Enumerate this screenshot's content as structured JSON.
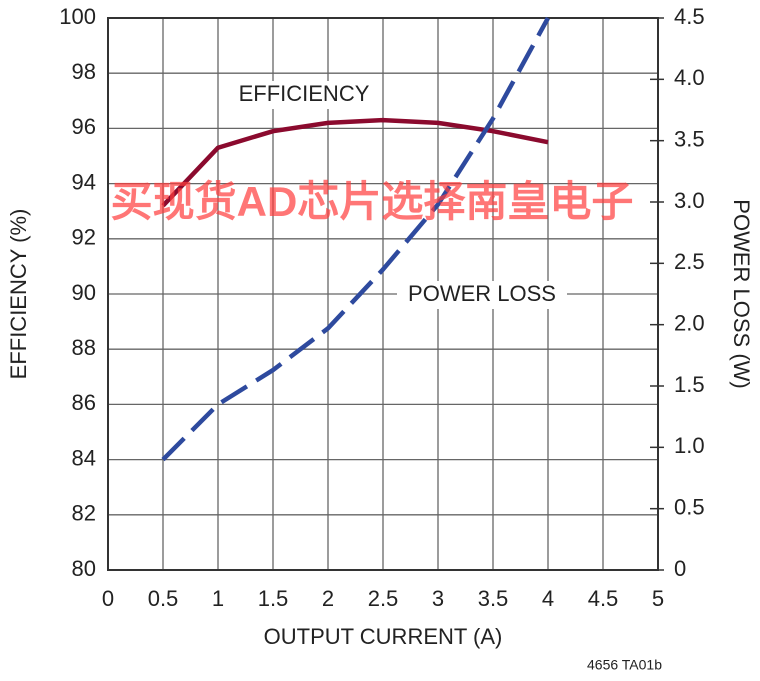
{
  "chart_data": {
    "type": "line",
    "x_label": "OUTPUT CURRENT (A)",
    "y_label": "EFFICIENCY (%)",
    "y2_label": "POWER LOSS (W)",
    "annotations": [
      "EFFICIENCY",
      "POWER LOSS",
      "4656 TA01b",
      "买现货AD芯片选择南皇电子"
    ],
    "x": [
      0.5,
      1,
      1.5,
      2,
      2.5,
      3,
      3.5,
      4
    ],
    "series": [
      {
        "name": "EFFICIENCY",
        "color": "#8b0a2e",
        "values": [
          93.2,
          95.3,
          95.9,
          96.2,
          96.3,
          96.2,
          95.9,
          95.5
        ]
      },
      {
        "name": "POWER LOSS",
        "color": "#2e4a9e",
        "axis": "y2",
        "values": [
          0.9,
          1.35,
          1.63,
          1.97,
          2.45,
          2.98,
          3.68,
          4.5
        ]
      }
    ],
    "xlim": [
      0,
      5
    ],
    "xticks": [
      0,
      0.5,
      1,
      1.5,
      2,
      2.5,
      3,
      3.5,
      4,
      4.5,
      5
    ],
    "ylim": [
      80,
      100
    ],
    "yticks": [
      80,
      82,
      84,
      86,
      88,
      90,
      92,
      94,
      96,
      98,
      100
    ],
    "y2lim": [
      0,
      4.5
    ],
    "y2ticks": [
      0,
      0.5,
      {
        "value": 1,
        "label": "1.0"
      },
      1.5,
      {
        "value": 2,
        "label": "2.0"
      },
      2.5,
      {
        "value": 3,
        "label": "3.0"
      },
      3.5,
      {
        "value": 4,
        "label": "4.0"
      },
      4.5
    ],
    "grid": true
  }
}
